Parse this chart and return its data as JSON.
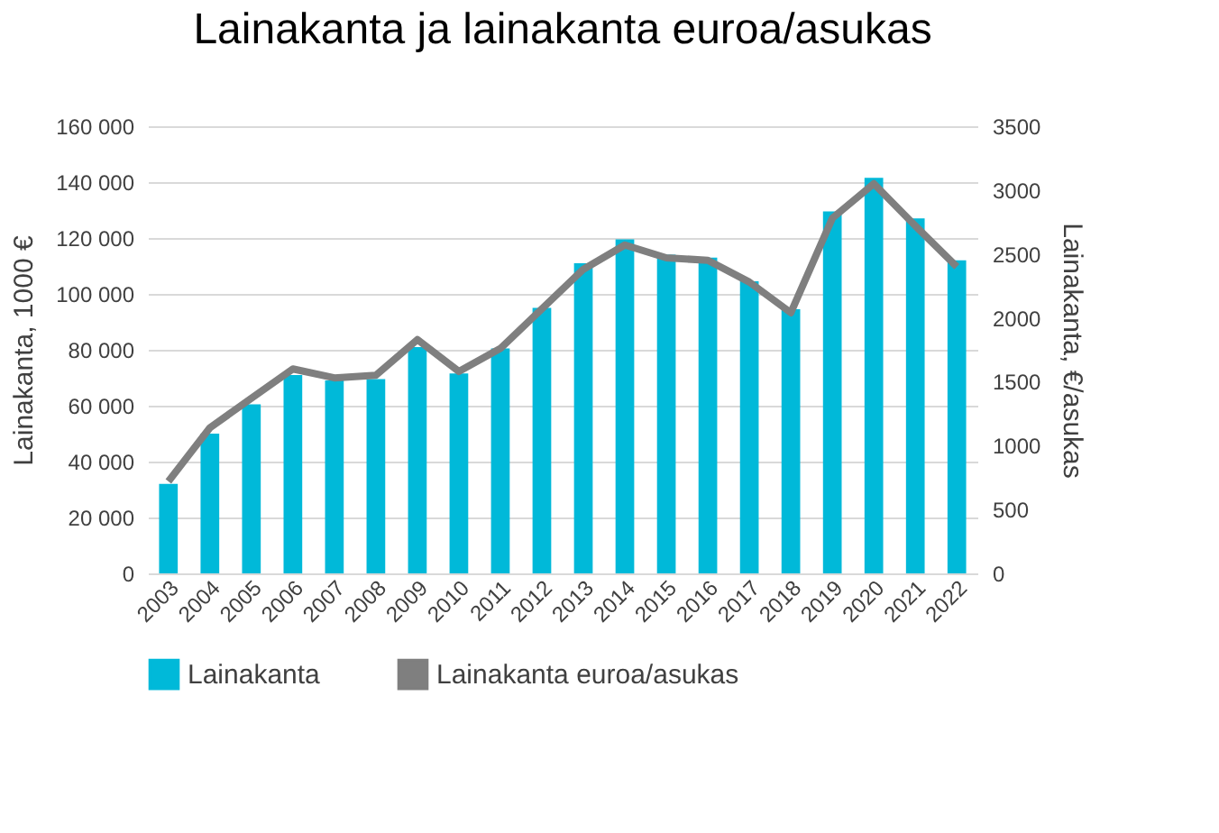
{
  "chart_data": {
    "type": "bar",
    "title": "Lainakanta ja lainakanta euroa/asukas",
    "categories": [
      "2003",
      "2004",
      "2005",
      "2006",
      "2007",
      "2008",
      "2009",
      "2010",
      "2011",
      "2012",
      "2013",
      "2014",
      "2015",
      "2016",
      "2017",
      "2018",
      "2019",
      "2020",
      "2021",
      "2022"
    ],
    "series": [
      {
        "name": "Lainakanta",
        "color": "#00b9d9",
        "values": [
          32000,
          50000,
          60500,
          71000,
          69000,
          69500,
          81000,
          71500,
          80500,
          95000,
          111000,
          119500,
          114000,
          113000,
          104500,
          94500,
          129500,
          141500,
          127000,
          112000
        ]
      },
      {
        "name": "Lainakanta euroa/asukas",
        "type": "line",
        "axis": "y2",
        "color": "#7f7f7f",
        "values": [
          720,
          1140,
          1370,
          1600,
          1530,
          1550,
          1830,
          1580,
          1760,
          2070,
          2380,
          2570,
          2470,
          2450,
          2280,
          2040,
          2780,
          3050,
          2720,
          2400
        ]
      }
    ],
    "ylabel": "Lainakanta, 1000 €",
    "y2label": "Lainakanta, €/asukas",
    "ylim": [
      0,
      160000
    ],
    "yticks": [
      {
        "value": 0,
        "label": "0"
      },
      {
        "value": 20000,
        "label": "20 000"
      },
      {
        "value": 40000,
        "label": "40 000"
      },
      {
        "value": 60000,
        "label": "60 000"
      },
      {
        "value": 80000,
        "label": "80 000"
      },
      {
        "value": 100000,
        "label": "100 000"
      },
      {
        "value": 120000,
        "label": "120 000"
      },
      {
        "value": 140000,
        "label": "140 000"
      },
      {
        "value": 160000,
        "label": "160 000"
      }
    ],
    "y2lim": [
      0,
      3500
    ],
    "y2ticks": [
      0,
      500,
      1000,
      1500,
      2000,
      2500,
      3000,
      3500
    ],
    "grid": "y",
    "legend": "bottom",
    "marker": "none",
    "line_style": "solid"
  }
}
